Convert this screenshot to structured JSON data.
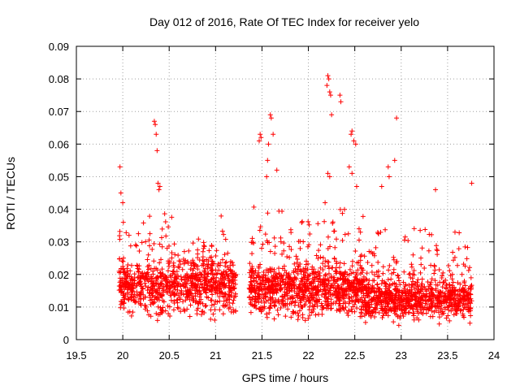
{
  "chart_data": {
    "type": "scatter",
    "title": "Day 012 of 2016, Rate Of TEC Index for receiver yelo",
    "xlabel": "GPS time / hours",
    "ylabel": "ROTI / TECUs",
    "xlim": [
      19.5,
      24
    ],
    "ylim": [
      0,
      0.09
    ],
    "xticks": [
      "19.5",
      "20",
      "20.5",
      "21",
      "21.5",
      "22",
      "22.5",
      "23",
      "23.5",
      "24"
    ],
    "yticks": [
      "0",
      "0.01",
      "0.02",
      "0.03",
      "0.04",
      "0.05",
      "0.06",
      "0.07",
      "0.08",
      "0.09"
    ],
    "grid": true,
    "marker": "+",
    "color": "#ff0000",
    "series": [
      {
        "name": "ROTI",
        "clusters": [
          {
            "x_start": 19.96,
            "x_end": 21.22,
            "y_min": 0.004,
            "y_max": 0.042,
            "y_center": 0.016,
            "count": 900
          },
          {
            "x_start": 21.36,
            "x_end": 22.6,
            "y_min": 0.004,
            "y_max": 0.045,
            "y_center": 0.015,
            "count": 1000
          },
          {
            "x_start": 22.6,
            "x_end": 23.76,
            "y_min": 0.004,
            "y_max": 0.04,
            "y_center": 0.012,
            "count": 900
          }
        ],
        "outliers": [
          [
            19.97,
            0.053
          ],
          [
            19.98,
            0.045
          ],
          [
            20.0,
            0.042
          ],
          [
            20.34,
            0.067
          ],
          [
            20.35,
            0.066
          ],
          [
            20.36,
            0.063
          ],
          [
            20.37,
            0.058
          ],
          [
            20.38,
            0.048
          ],
          [
            20.4,
            0.047
          ],
          [
            20.39,
            0.046
          ],
          [
            21.48,
            0.063
          ],
          [
            21.49,
            0.062
          ],
          [
            21.47,
            0.061
          ],
          [
            21.59,
            0.069
          ],
          [
            21.6,
            0.068
          ],
          [
            21.62,
            0.063
          ],
          [
            21.57,
            0.06
          ],
          [
            21.56,
            0.055
          ],
          [
            21.66,
            0.052
          ],
          [
            21.55,
            0.05
          ],
          [
            22.21,
            0.081
          ],
          [
            22.22,
            0.08
          ],
          [
            22.2,
            0.078
          ],
          [
            22.23,
            0.076
          ],
          [
            22.24,
            0.075
          ],
          [
            22.25,
            0.069
          ],
          [
            22.34,
            0.075
          ],
          [
            22.35,
            0.073
          ],
          [
            22.47,
            0.064
          ],
          [
            22.46,
            0.063
          ],
          [
            22.49,
            0.061
          ],
          [
            22.51,
            0.06
          ],
          [
            22.44,
            0.053
          ],
          [
            22.47,
            0.051
          ],
          [
            22.52,
            0.047
          ],
          [
            22.21,
            0.051
          ],
          [
            22.23,
            0.05
          ],
          [
            22.86,
            0.053
          ],
          [
            22.87,
            0.05
          ],
          [
            22.95,
            0.068
          ],
          [
            22.93,
            0.055
          ],
          [
            22.79,
            0.047
          ],
          [
            23.37,
            0.046
          ],
          [
            23.76,
            0.048
          ],
          [
            22.18,
            0.042
          ]
        ]
      }
    ]
  }
}
